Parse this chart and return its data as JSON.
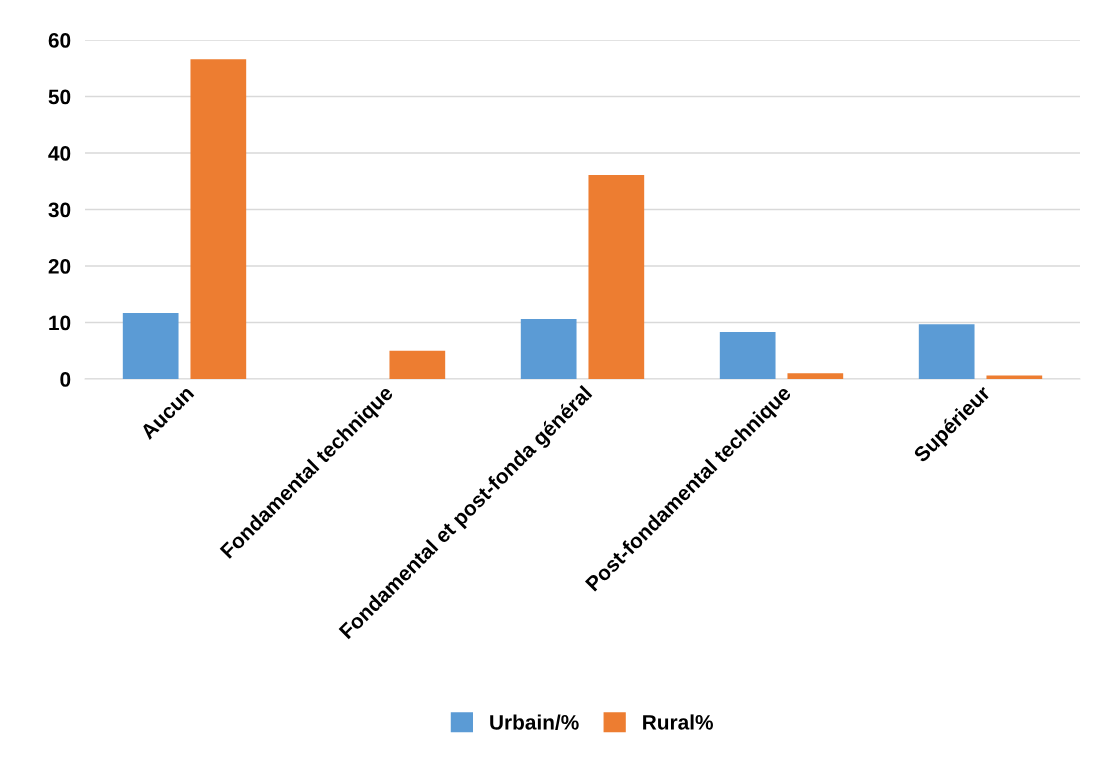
{
  "chart_data": {
    "type": "bar",
    "categories": [
      "Aucun",
      "Fondamental technique",
      "Fondamental et post-fonda général",
      "Post-fondamental technique",
      "Supérieur"
    ],
    "series": [
      {
        "name": "Urbain/%",
        "color": "#5b9bd5",
        "values": [
          11.7,
          0,
          10.6,
          8.3,
          9.7
        ]
      },
      {
        "name": "Rural%",
        "color": "#ed7d31",
        "values": [
          56.6,
          5.0,
          36.1,
          1.0,
          0.6
        ]
      }
    ],
    "ylim": [
      0,
      60
    ],
    "yticks": [
      0,
      10,
      20,
      30,
      40,
      50,
      60
    ],
    "grid": "y",
    "legend": "bottom"
  }
}
